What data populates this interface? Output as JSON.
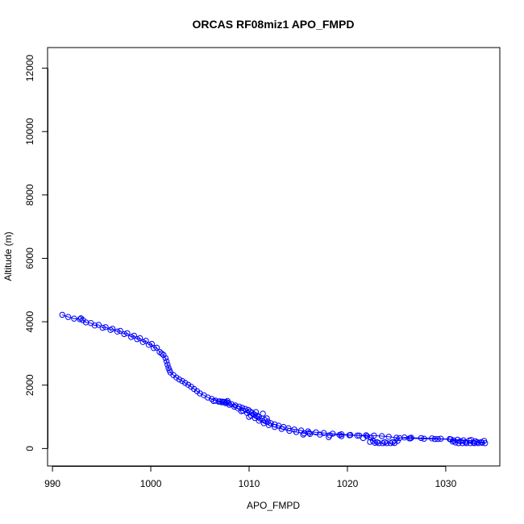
{
  "chart_data": {
    "type": "scatter",
    "title": "ORCAS RF08miz1 APO_FMPD",
    "xlabel": "APO_FMPD",
    "ylabel": "Altitude (m)",
    "xlim": [
      989.5,
      1035.5
    ],
    "ylim": [
      -550,
      12650
    ],
    "x_ticks": [
      990,
      1000,
      1010,
      1020,
      1030
    ],
    "y_ticks": [
      0,
      2000,
      4000,
      6000,
      8000,
      10000,
      12000
    ],
    "grid": false,
    "legend": "none",
    "series_color": "#0000ff",
    "series": [
      {
        "connect": true,
        "points": [
          [
            991.0,
            4220
          ],
          [
            991.6,
            4150
          ],
          [
            992.2,
            4100
          ],
          [
            992.8,
            4080
          ],
          [
            992.9,
            4110
          ],
          [
            993.1,
            4050
          ],
          [
            993.4,
            3980
          ],
          [
            993.9,
            3960
          ],
          [
            994.3,
            3880
          ],
          [
            994.7,
            3900
          ],
          [
            995.1,
            3810
          ],
          [
            995.4,
            3830
          ],
          [
            995.9,
            3740
          ],
          [
            996.1,
            3780
          ],
          [
            996.6,
            3690
          ],
          [
            996.9,
            3710
          ],
          [
            997.3,
            3610
          ],
          [
            997.6,
            3640
          ],
          [
            998.0,
            3520
          ],
          [
            998.3,
            3560
          ],
          [
            998.6,
            3450
          ],
          [
            998.9,
            3480
          ],
          [
            999.2,
            3360
          ],
          [
            999.5,
            3400
          ],
          [
            999.8,
            3270
          ],
          [
            1000.1,
            3300
          ],
          [
            1000.3,
            3170
          ],
          [
            1000.6,
            3180
          ],
          [
            1000.9,
            3050
          ],
          [
            1001.1,
            3000
          ],
          [
            1001.3,
            2950
          ],
          [
            1001.5,
            2850
          ],
          [
            1001.6,
            2750
          ],
          [
            1001.7,
            2650
          ],
          [
            1001.8,
            2550
          ],
          [
            1001.9,
            2470
          ],
          [
            1002.0,
            2400
          ],
          [
            1002.3,
            2320
          ],
          [
            1002.6,
            2240
          ],
          [
            1002.9,
            2180
          ],
          [
            1003.2,
            2130
          ],
          [
            1003.5,
            2070
          ],
          [
            1003.8,
            2010
          ],
          [
            1004.1,
            1950
          ],
          [
            1004.4,
            1880
          ],
          [
            1004.7,
            1810
          ],
          [
            1005.0,
            1740
          ],
          [
            1005.4,
            1680
          ],
          [
            1005.8,
            1610
          ],
          [
            1006.2,
            1560
          ],
          [
            1006.6,
            1510
          ],
          [
            1007.0,
            1490
          ],
          [
            1007.3,
            1480
          ],
          [
            1007.5,
            1470
          ],
          [
            1007.7,
            1460
          ],
          [
            1007.9,
            1440
          ],
          [
            1008.2,
            1400
          ],
          [
            1008.6,
            1360
          ],
          [
            1009.0,
            1320
          ],
          [
            1009.3,
            1280
          ],
          [
            1009.6,
            1250
          ],
          [
            1009.9,
            1220
          ],
          [
            1010.1,
            1170
          ],
          [
            1010.3,
            1130
          ],
          [
            1010.5,
            1080
          ],
          [
            1010.8,
            1040
          ],
          [
            1011.0,
            1000
          ],
          [
            1011.3,
            950
          ],
          [
            1011.6,
            900
          ],
          [
            1011.9,
            850
          ],
          [
            1012.2,
            800
          ],
          [
            1012.6,
            760
          ],
          [
            1013.0,
            720
          ],
          [
            1013.5,
            680
          ],
          [
            1014.0,
            640
          ],
          [
            1014.6,
            600
          ],
          [
            1015.3,
            570
          ],
          [
            1016.0,
            540
          ],
          [
            1016.8,
            510
          ],
          [
            1017.6,
            490
          ],
          [
            1018.5,
            470
          ],
          [
            1019.4,
            450
          ],
          [
            1020.3,
            430
          ],
          [
            1021.2,
            410
          ],
          [
            1022.0,
            390
          ],
          [
            1022.4,
            340
          ],
          [
            1022.6,
            240
          ],
          [
            1022.8,
            180
          ],
          [
            1023.2,
            170
          ],
          [
            1023.6,
            170
          ],
          [
            1024.0,
            170
          ],
          [
            1024.4,
            170
          ],
          [
            1024.8,
            175
          ],
          [
            1025.1,
            240
          ],
          [
            1025.3,
            330
          ],
          [
            1025.8,
            350
          ],
          [
            1026.5,
            340
          ],
          [
            1027.5,
            330
          ],
          [
            1028.6,
            320
          ],
          [
            1029.5,
            310
          ],
          [
            1030.4,
            300
          ],
          [
            1030.8,
            260
          ],
          [
            1031.0,
            190
          ],
          [
            1031.3,
            170
          ],
          [
            1031.7,
            170
          ],
          [
            1032.1,
            170
          ],
          [
            1032.5,
            170
          ],
          [
            1032.9,
            170
          ],
          [
            1033.3,
            170
          ],
          [
            1033.7,
            180
          ],
          [
            1034.0,
            170
          ],
          [
            1033.6,
            200
          ],
          [
            1033.0,
            230
          ],
          [
            1032.4,
            250
          ],
          [
            1031.8,
            260
          ],
          [
            1031.2,
            280
          ],
          [
            1030.5,
            290
          ],
          [
            1029.2,
            300
          ],
          [
            1027.8,
            310
          ],
          [
            1026.4,
            320
          ],
          [
            1025.0,
            340
          ],
          [
            1024.2,
            370
          ],
          [
            1023.5,
            390
          ],
          [
            1022.7,
            410
          ],
          [
            1021.9,
            420
          ],
          [
            1021.0,
            410
          ],
          [
            1020.2,
            420
          ],
          [
            1019.2,
            430
          ],
          [
            1018.2,
            420
          ],
          [
            1017.2,
            440
          ],
          [
            1016.2,
            460
          ],
          [
            1015.6,
            480
          ],
          [
            1014.8,
            520
          ],
          [
            1014.1,
            560
          ],
          [
            1013.3,
            620
          ],
          [
            1012.6,
            680
          ],
          [
            1012.0,
            740
          ],
          [
            1011.5,
            800
          ],
          [
            1011.0,
            880
          ],
          [
            1010.6,
            960
          ],
          [
            1010.2,
            1040
          ],
          [
            1009.8,
            1120
          ],
          [
            1009.4,
            1190
          ],
          [
            1008.9,
            1260
          ],
          [
            1008.5,
            1320
          ],
          [
            1008.0,
            1380
          ],
          [
            1007.6,
            1430
          ],
          [
            1007.2,
            1460
          ],
          [
            1006.9,
            1480
          ]
        ]
      },
      {
        "connect": false,
        "points": [
          [
            1015.5,
            440
          ],
          [
            1016.1,
            490
          ],
          [
            1018.1,
            360
          ],
          [
            1019.4,
            390
          ],
          [
            1021.6,
            330
          ],
          [
            1026.3,
            320
          ],
          [
            1028.9,
            300
          ],
          [
            1032.6,
            270
          ],
          [
            1033.9,
            240
          ],
          [
            1030.7,
            220
          ],
          [
            1031.5,
            230
          ],
          [
            1032.0,
            200
          ],
          [
            1032.8,
            190
          ],
          [
            1033.2,
            200
          ],
          [
            1022.3,
            210
          ],
          [
            1023.0,
            200
          ],
          [
            1023.8,
            200
          ],
          [
            1024.6,
            200
          ],
          [
            1009.2,
            1180
          ],
          [
            1010.7,
            1150
          ],
          [
            1011.4,
            1100
          ],
          [
            1010.0,
            1000
          ],
          [
            1011.8,
            950
          ],
          [
            1006.4,
            1500
          ],
          [
            1007.8,
            1500
          ]
        ]
      }
    ]
  }
}
